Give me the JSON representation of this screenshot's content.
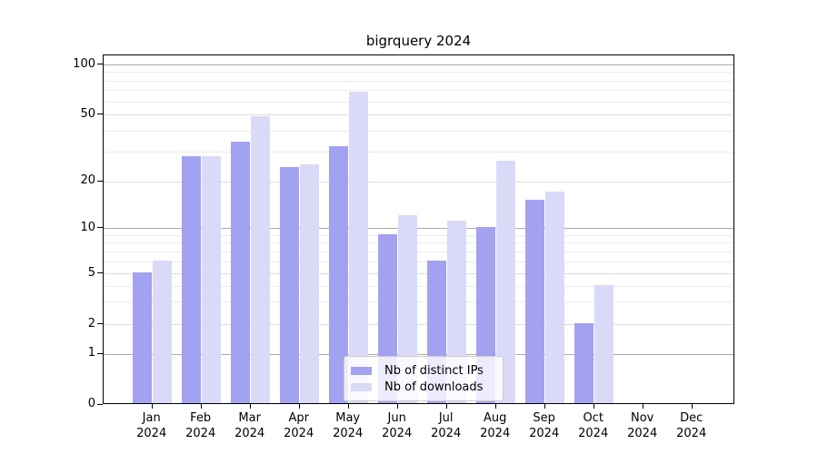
{
  "title": "bigrquery 2024",
  "chart_data": {
    "type": "bar",
    "title": "bigrquery 2024",
    "categories": [
      "Jan",
      "Feb",
      "Mar",
      "Apr",
      "May",
      "Jun",
      "Jul",
      "Aug",
      "Sep",
      "Oct",
      "Nov",
      "Dec"
    ],
    "category_year": "2024",
    "series": [
      {
        "name": "Nb of distinct IPs",
        "color": "#a2a2f0",
        "values": [
          5,
          28,
          34,
          24,
          32,
          9,
          6,
          10,
          15,
          2,
          0,
          0
        ]
      },
      {
        "name": "Nb of downloads",
        "color": "#dadaf8",
        "values": [
          6,
          28,
          48,
          25,
          68,
          12,
          11,
          26,
          17,
          4,
          0,
          0
        ]
      }
    ],
    "yscale": "symlog",
    "y_ticks": [
      0,
      1,
      2,
      5,
      10,
      20,
      50,
      100
    ],
    "y_minor_ticks": [
      3,
      4,
      6,
      7,
      8,
      9,
      30,
      40,
      60,
      70,
      80,
      90
    ],
    "ylim": [
      0,
      115
    ],
    "grid": true,
    "legend_position": "lower center",
    "colors": {
      "grid_decade": "#ababab",
      "grid_labeled": "#dcdcdc",
      "grid_minor": "#ececec",
      "axis": "#000000",
      "background": "#ffffff"
    }
  }
}
